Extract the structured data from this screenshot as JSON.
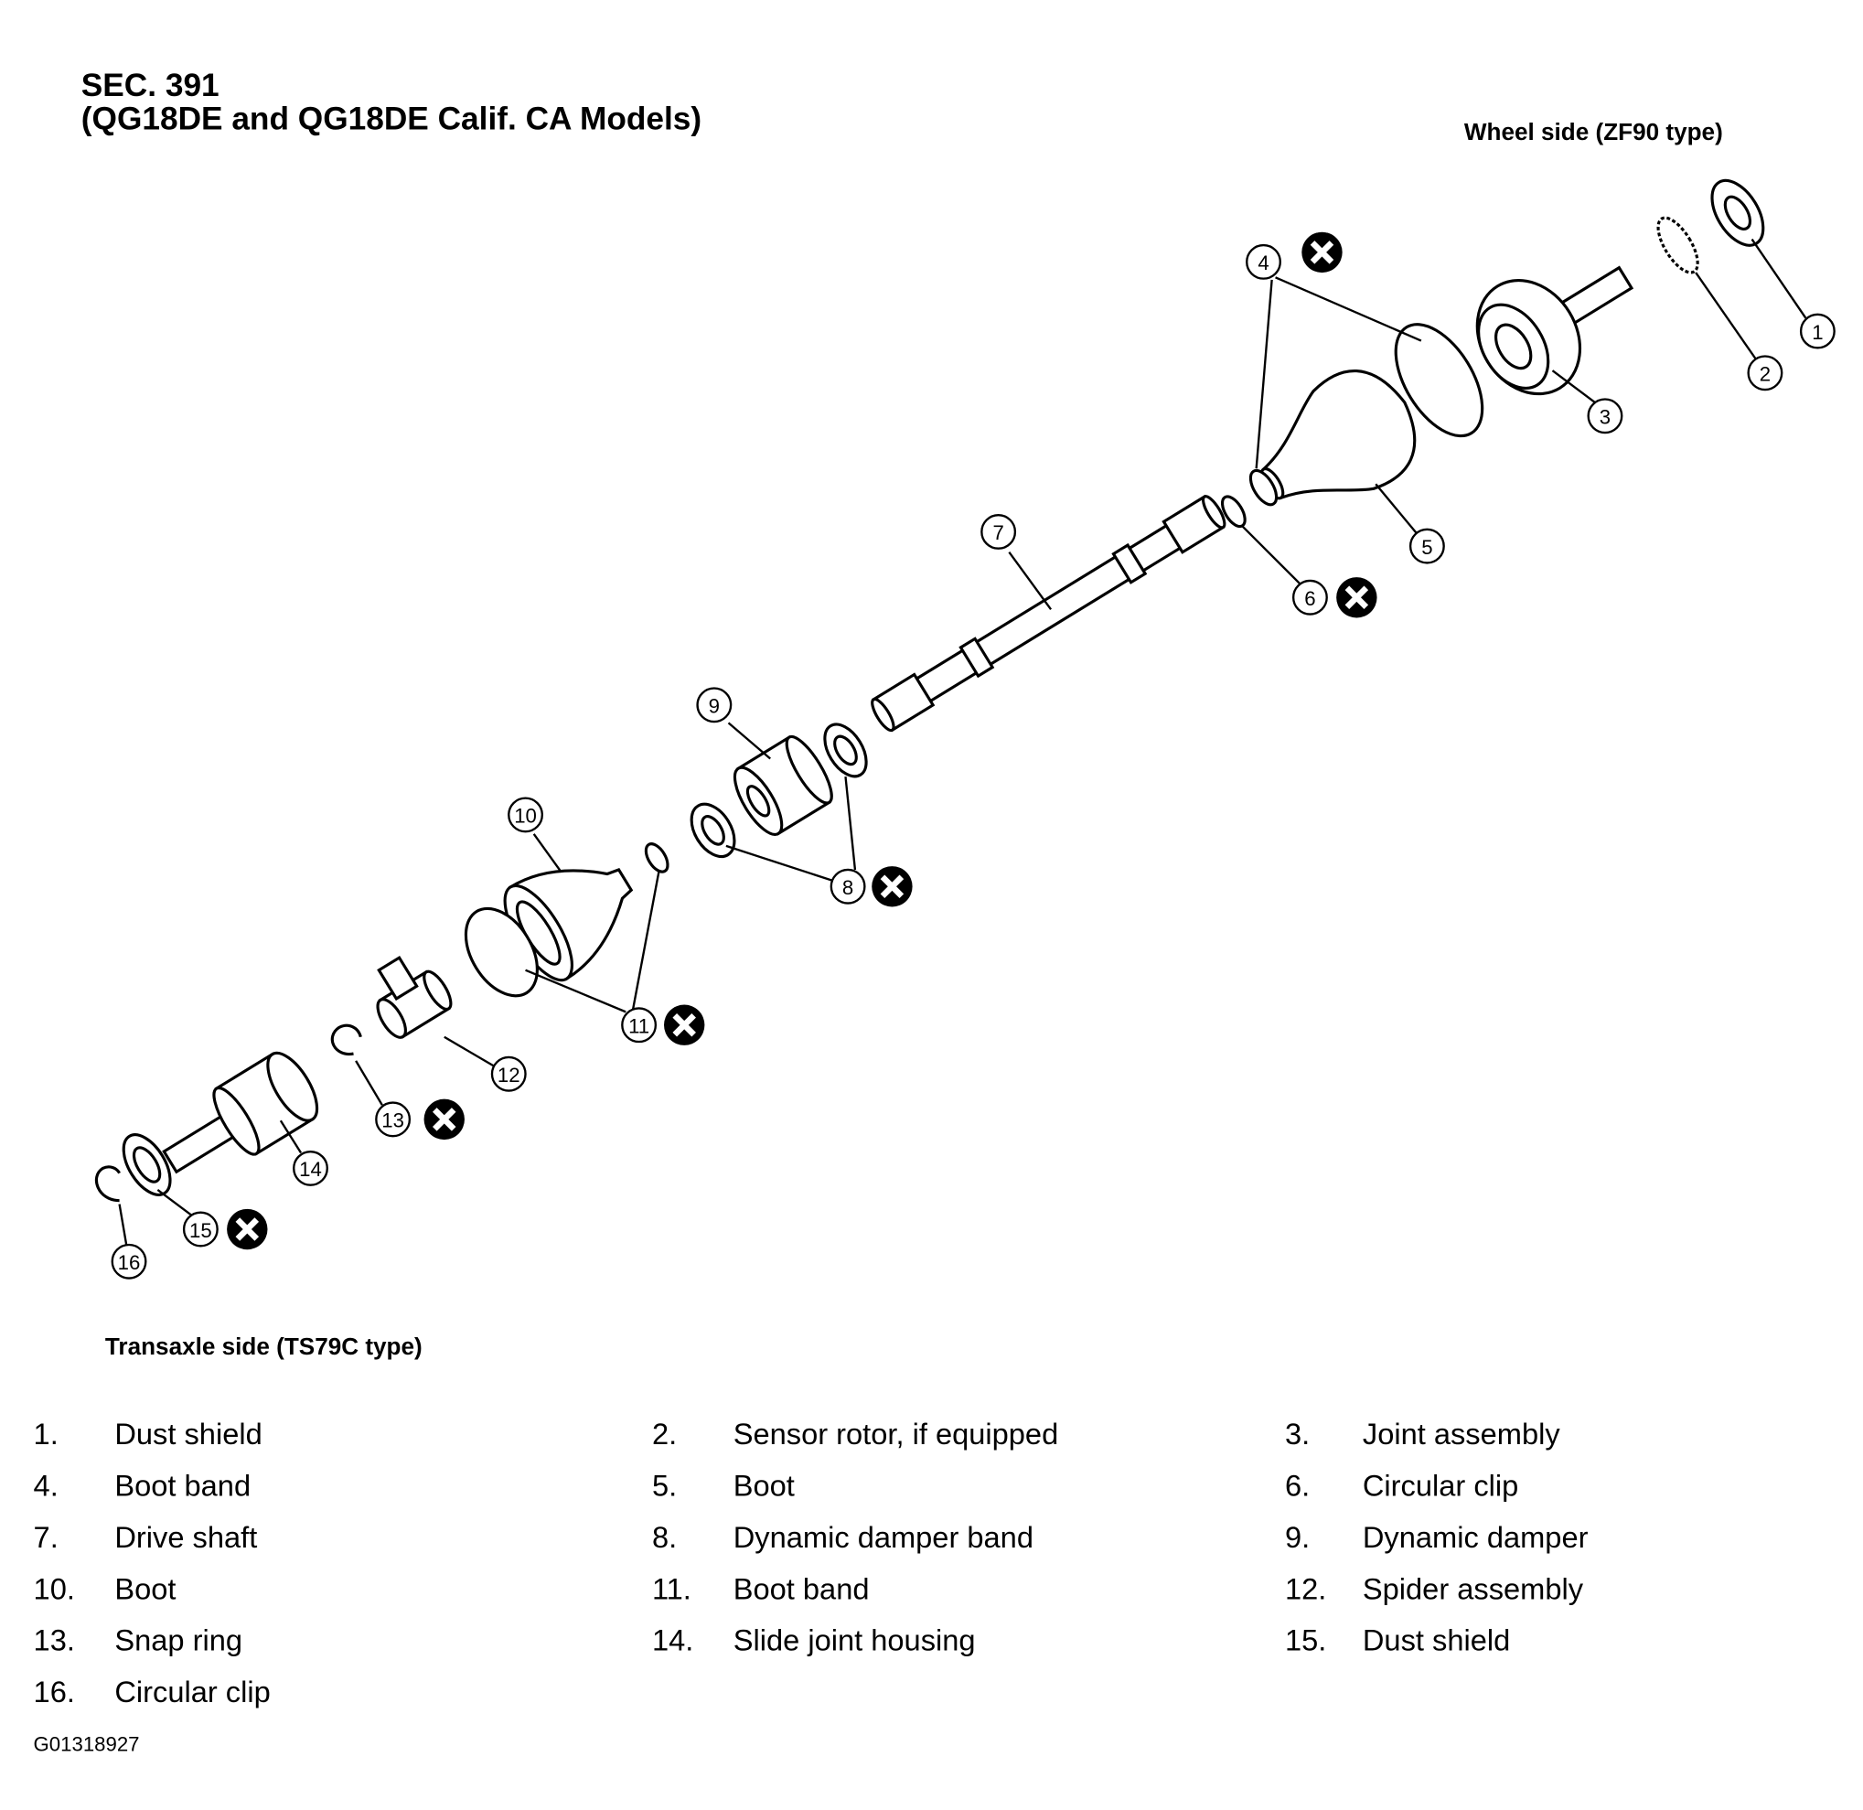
{
  "header": {
    "section": "SEC. 391",
    "models": "(QG18DE and QG18DE Calif. CA Models)"
  },
  "labels": {
    "wheel_side": "Wheel side (ZF90 type)",
    "transaxle_side": "Transaxle side (TS79C type)"
  },
  "callouts": [
    {
      "num": "1",
      "replace_mark": false
    },
    {
      "num": "2",
      "replace_mark": false
    },
    {
      "num": "3",
      "replace_mark": false
    },
    {
      "num": "4",
      "replace_mark": true
    },
    {
      "num": "5",
      "replace_mark": false
    },
    {
      "num": "6",
      "replace_mark": true
    },
    {
      "num": "7",
      "replace_mark": false
    },
    {
      "num": "8",
      "replace_mark": true
    },
    {
      "num": "9",
      "replace_mark": false
    },
    {
      "num": "10",
      "replace_mark": false
    },
    {
      "num": "11",
      "replace_mark": true
    },
    {
      "num": "12",
      "replace_mark": false
    },
    {
      "num": "13",
      "replace_mark": true
    },
    {
      "num": "14",
      "replace_mark": false
    },
    {
      "num": "15",
      "replace_mark": true
    },
    {
      "num": "16",
      "replace_mark": false
    }
  ],
  "legend": [
    {
      "num": "1.",
      "name": "Dust shield"
    },
    {
      "num": "2.",
      "name": "Sensor rotor, if equipped"
    },
    {
      "num": "3.",
      "name": "Joint assembly"
    },
    {
      "num": "4.",
      "name": "Boot band"
    },
    {
      "num": "5.",
      "name": "Boot"
    },
    {
      "num": "6.",
      "name": "Circular clip"
    },
    {
      "num": "7.",
      "name": "Drive shaft"
    },
    {
      "num": "8.",
      "name": "Dynamic damper band"
    },
    {
      "num": "9.",
      "name": "Dynamic damper"
    },
    {
      "num": "10.",
      "name": "Boot"
    },
    {
      "num": "11.",
      "name": "Boot band"
    },
    {
      "num": "12.",
      "name": "Spider assembly"
    },
    {
      "num": "13.",
      "name": "Snap ring"
    },
    {
      "num": "14.",
      "name": "Slide joint housing"
    },
    {
      "num": "15.",
      "name": "Dust shield"
    },
    {
      "num": "16.",
      "name": "Circular clip"
    }
  ],
  "figure_code": "G01318927"
}
